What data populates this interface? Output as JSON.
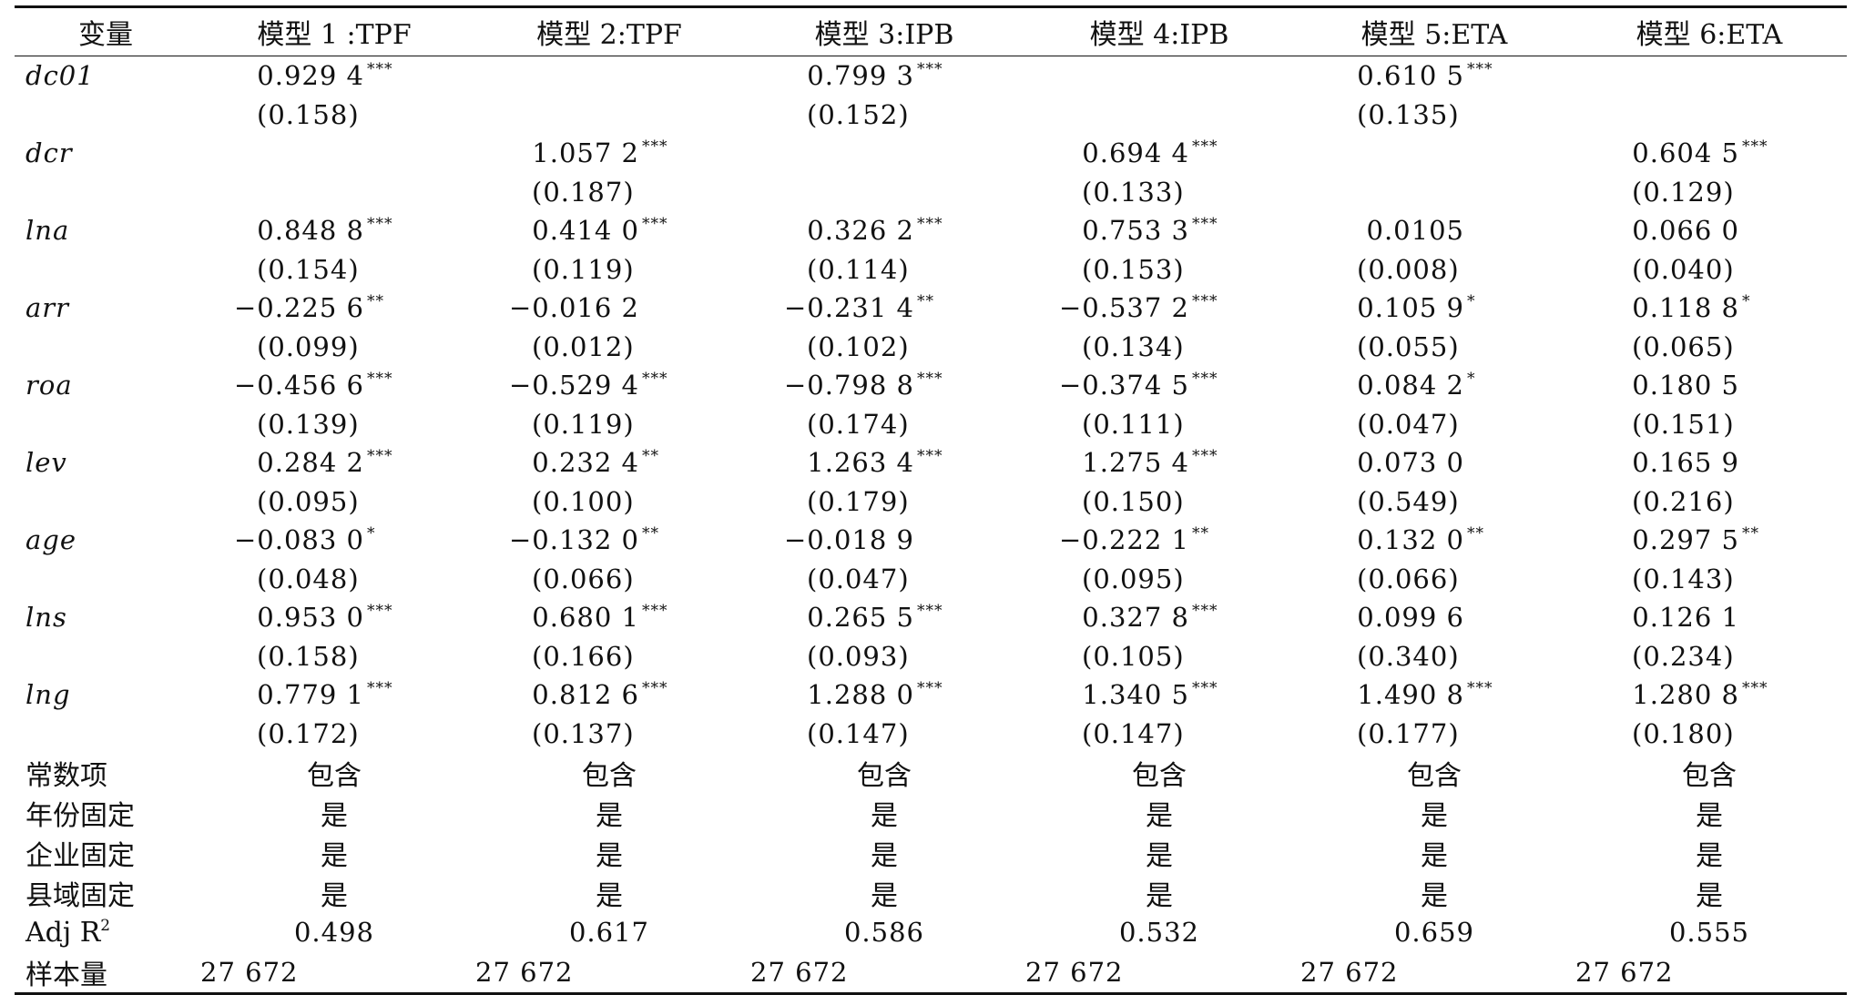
{
  "headers": [
    "变量",
    "模型 1 :TPF",
    "模型 2:TPF",
    "模型 3:IPB",
    "模型 4:IPB",
    "模型 5:ETA",
    "模型 6:ETA"
  ],
  "variables": [
    {
      "name": "dc01",
      "coef": [
        {
          "v": "0.929 4",
          "s": "***"
        },
        {
          "v": "",
          "s": ""
        },
        {
          "v": "0.799 3",
          "s": "***"
        },
        {
          "v": "",
          "s": ""
        },
        {
          "v": "0.610 5",
          "s": "***"
        },
        {
          "v": "",
          "s": ""
        }
      ],
      "se": [
        "(0.158)",
        "",
        "(0.152)",
        "",
        "(0.135)",
        ""
      ]
    },
    {
      "name": "dcr",
      "coef": [
        {
          "v": "",
          "s": ""
        },
        {
          "v": "1.057 2",
          "s": "***"
        },
        {
          "v": "",
          "s": ""
        },
        {
          "v": "0.694 4",
          "s": "***"
        },
        {
          "v": "",
          "s": ""
        },
        {
          "v": "0.604 5",
          "s": "***"
        }
      ],
      "se": [
        "",
        "(0.187)",
        "",
        "(0.133)",
        "",
        "(0.129)"
      ]
    },
    {
      "name": "lna",
      "coef": [
        {
          "v": "0.848 8",
          "s": "***"
        },
        {
          "v": "0.414 0",
          "s": "***"
        },
        {
          "v": "0.326 2",
          "s": "***"
        },
        {
          "v": "0.753 3",
          "s": "***"
        },
        {
          "v": "0.0105",
          "s": ""
        },
        {
          "v": "0.066 0",
          "s": ""
        }
      ],
      "se": [
        "(0.154)",
        "(0.119)",
        "(0.114)",
        "(0.153)",
        "(0.008)",
        "(0.040)"
      ]
    },
    {
      "name": "arr",
      "coef": [
        {
          "v": "−0.225 6",
          "s": "**"
        },
        {
          "v": "−0.016 2",
          "s": ""
        },
        {
          "v": "−0.231 4",
          "s": "**"
        },
        {
          "v": "−0.537 2",
          "s": "***"
        },
        {
          "v": "0.105 9",
          "s": "*"
        },
        {
          "v": "0.118 8",
          "s": "*"
        }
      ],
      "se": [
        "(0.099)",
        "(0.012)",
        "(0.102)",
        "(0.134)",
        "(0.055)",
        "(0.065)"
      ]
    },
    {
      "name": "roa",
      "coef": [
        {
          "v": "−0.456 6",
          "s": "***"
        },
        {
          "v": "−0.529 4",
          "s": "***"
        },
        {
          "v": "−0.798 8",
          "s": "***"
        },
        {
          "v": "−0.374 5",
          "s": "***"
        },
        {
          "v": "0.084 2",
          "s": "*"
        },
        {
          "v": "0.180 5",
          "s": ""
        }
      ],
      "se": [
        "(0.139)",
        "(0.119)",
        "(0.174)",
        "(0.111)",
        "(0.047)",
        "(0.151)"
      ]
    },
    {
      "name": "lev",
      "coef": [
        {
          "v": "0.284 2",
          "s": "***"
        },
        {
          "v": "0.232 4",
          "s": "**"
        },
        {
          "v": "1.263 4",
          "s": "***"
        },
        {
          "v": "1.275 4",
          "s": "***"
        },
        {
          "v": "0.073 0",
          "s": ""
        },
        {
          "v": "0.165 9",
          "s": ""
        }
      ],
      "se": [
        "(0.095)",
        "(0.100)",
        "(0.179)",
        "(0.150)",
        "(0.549)",
        "(0.216)"
      ]
    },
    {
      "name": "age",
      "coef": [
        {
          "v": "−0.083 0",
          "s": "*"
        },
        {
          "v": "−0.132 0",
          "s": "**"
        },
        {
          "v": "−0.018 9",
          "s": ""
        },
        {
          "v": "−0.222 1",
          "s": "**"
        },
        {
          "v": "0.132 0",
          "s": "**"
        },
        {
          "v": "0.297 5",
          "s": "**"
        }
      ],
      "se": [
        "(0.048)",
        "(0.066)",
        "(0.047)",
        "(0.095)",
        "(0.066)",
        "(0.143)"
      ]
    },
    {
      "name": "lns",
      "coef": [
        {
          "v": "0.953 0",
          "s": "***"
        },
        {
          "v": "0.680 1",
          "s": "***"
        },
        {
          "v": "0.265 5",
          "s": "***"
        },
        {
          "v": "0.327 8",
          "s": "***"
        },
        {
          "v": "0.099 6",
          "s": ""
        },
        {
          "v": "0.126 1",
          "s": ""
        }
      ],
      "se": [
        "(0.158)",
        "(0.166)",
        "(0.093)",
        "(0.105)",
        "(0.340)",
        "(0.234)"
      ]
    },
    {
      "name": "lng",
      "coef": [
        {
          "v": "0.779 1",
          "s": "***"
        },
        {
          "v": "0.812 6",
          "s": "***"
        },
        {
          "v": "1.288 0",
          "s": "***"
        },
        {
          "v": "1.340 5",
          "s": "***"
        },
        {
          "v": "1.490 8",
          "s": "***"
        },
        {
          "v": "1.280 8",
          "s": "***"
        }
      ],
      "se": [
        "(0.172)",
        "(0.137)",
        "(0.147)",
        "(0.147)",
        "(0.177)",
        "(0.180)"
      ]
    }
  ],
  "controls": [
    {
      "label": "常数项",
      "values": [
        "包含",
        "包含",
        "包含",
        "包含",
        "包含",
        "包含"
      ]
    },
    {
      "label": "年份固定",
      "values": [
        "是",
        "是",
        "是",
        "是",
        "是",
        "是"
      ]
    },
    {
      "label": "企业固定",
      "values": [
        "是",
        "是",
        "是",
        "是",
        "是",
        "是"
      ]
    },
    {
      "label": "县域固定",
      "values": [
        "是",
        "是",
        "是",
        "是",
        "是",
        "是"
      ]
    }
  ],
  "adj_r2": {
    "label": "Adj R",
    "label_sup": "2",
    "values": [
      "0.498",
      "0.617",
      "0.586",
      "0.532",
      "0.659",
      "0.555"
    ]
  },
  "sample": {
    "label": "样本量",
    "values": [
      "27 672",
      "27 672",
      "27 672",
      "27 672",
      "27 672",
      "27 672"
    ]
  }
}
